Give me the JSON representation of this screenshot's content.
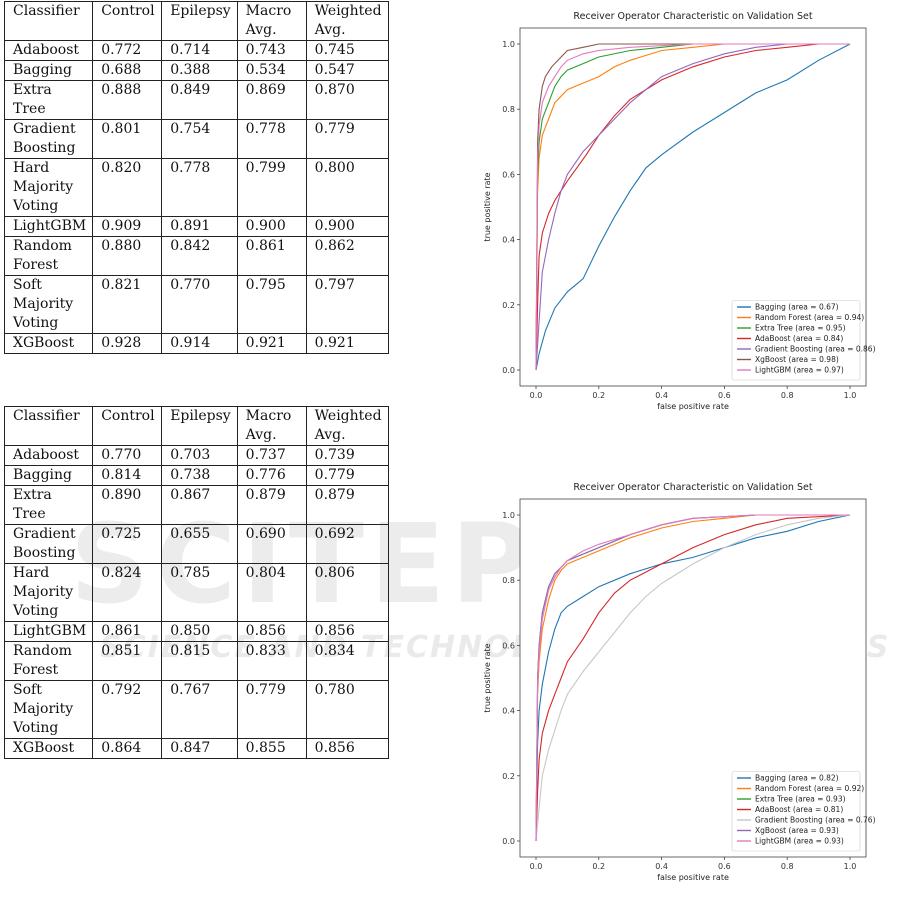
{
  "tables": [
    {
      "headers": [
        "Classifier",
        "Control",
        "Epilepsy",
        "Macro\nAvg.",
        "Weighted\nAvg."
      ],
      "rows": [
        [
          "Adaboost",
          "0.772",
          "0.714",
          "0.743",
          "0.745"
        ],
        [
          "Bagging",
          "0.688",
          "0.388",
          "0.534",
          "0.547"
        ],
        [
          "Extra\nTree",
          "0.888",
          "0.849",
          "0.869",
          "0.870"
        ],
        [
          "Gradient\nBoosting",
          "0.801",
          "0.754",
          "0.778",
          "0.779"
        ],
        [
          "Hard\nMajority\nVoting",
          "0.820",
          "0.778",
          "0.799",
          "0.800"
        ],
        [
          "LightGBM",
          "0.909",
          "0.891",
          "0.900",
          "0.900"
        ],
        [
          "Random\nForest",
          "0.880",
          "0.842",
          "0.861",
          "0.862"
        ],
        [
          "Soft\nMajority\nVoting",
          "0.821",
          "0.770",
          "0.795",
          "0.797"
        ],
        [
          "XGBoost",
          "0.928",
          "0.914",
          "0.921",
          "0.921"
        ]
      ]
    },
    {
      "headers": [
        "Classifier",
        "Control",
        "Epilepsy",
        "Macro\nAvg.",
        "Weighted\nAvg."
      ],
      "rows": [
        [
          "Adaboost",
          "0.770",
          "0.703",
          "0.737",
          "0.739"
        ],
        [
          "Bagging",
          "0.814",
          "0.738",
          "0.776",
          "0.779"
        ],
        [
          "Extra\nTree",
          "0.890",
          "0.867",
          "0.879",
          "0.879"
        ],
        [
          "Gradient\nBoosting",
          "0.725",
          "0.655",
          "0.690",
          "0.692"
        ],
        [
          "Hard\nMajority\nVoting",
          "0.824",
          "0.785",
          "0.804",
          "0.806"
        ],
        [
          "LightGBM",
          "0.861",
          "0.850",
          "0.856",
          "0.856"
        ],
        [
          "Random\nForest",
          "0.851",
          "0.815",
          "0.833",
          "0.834"
        ],
        [
          "Soft\nMajority\nVoting",
          "0.792",
          "0.767",
          "0.779",
          "0.780"
        ],
        [
          "XGBoost",
          "0.864",
          "0.847",
          "0.855",
          "0.856"
        ]
      ]
    }
  ],
  "watermark": {
    "main": "SCITEPRESS",
    "sub": "SCIENCE AND TECHNOLOGY PUBLICATIONS"
  },
  "chart_data": [
    {
      "type": "line",
      "title": "Receiver Operator Characteristic on Validation Set",
      "xlabel": "false positive rate",
      "ylabel": "true positive rate",
      "xlim": [
        0,
        1
      ],
      "ylim": [
        0,
        1
      ],
      "xticks": [
        0.0,
        0.2,
        0.4,
        0.6,
        0.8,
        1.0
      ],
      "yticks": [
        0.0,
        0.2,
        0.4,
        0.6,
        0.8,
        1.0
      ],
      "tick_labels": [
        "0.0",
        "0.2",
        "0.4",
        "0.6",
        "0.8",
        "1.0"
      ],
      "grid": false,
      "legend_position": "lower-right",
      "series": [
        {
          "name": "Bagging (area = 0.67)",
          "color": "#1f77b4",
          "x": [
            0,
            0.01,
            0.03,
            0.06,
            0.1,
            0.15,
            0.2,
            0.25,
            0.3,
            0.35,
            0.4,
            0.5,
            0.6,
            0.7,
            0.8,
            0.9,
            1.0
          ],
          "y": [
            0,
            0.05,
            0.12,
            0.19,
            0.24,
            0.28,
            0.38,
            0.47,
            0.55,
            0.62,
            0.66,
            0.73,
            0.79,
            0.85,
            0.89,
            0.95,
            1.0
          ]
        },
        {
          "name": "Random Forest (area = 0.94)",
          "color": "#ff7f0e",
          "x": [
            0,
            0.005,
            0.01,
            0.02,
            0.04,
            0.06,
            0.1,
            0.15,
            0.2,
            0.25,
            0.3,
            0.4,
            0.5,
            0.6,
            0.7,
            1.0
          ],
          "y": [
            0,
            0.55,
            0.65,
            0.72,
            0.77,
            0.82,
            0.86,
            0.88,
            0.9,
            0.93,
            0.95,
            0.98,
            0.99,
            1.0,
            1.0,
            1.0
          ]
        },
        {
          "name": "Extra Tree (area = 0.95)",
          "color": "#2ca02c",
          "x": [
            0,
            0.005,
            0.01,
            0.02,
            0.04,
            0.06,
            0.08,
            0.1,
            0.15,
            0.2,
            0.3,
            0.4,
            0.5,
            0.7,
            1.0
          ],
          "y": [
            0,
            0.6,
            0.7,
            0.77,
            0.82,
            0.87,
            0.9,
            0.92,
            0.94,
            0.96,
            0.98,
            0.99,
            1.0,
            1.0,
            1.0
          ]
        },
        {
          "name": "AdaBoost (area = 0.84)",
          "color": "#d62728",
          "x": [
            0,
            0.005,
            0.01,
            0.02,
            0.04,
            0.06,
            0.08,
            0.1,
            0.13,
            0.16,
            0.2,
            0.25,
            0.3,
            0.35,
            0.4,
            0.5,
            0.6,
            0.7,
            0.8,
            0.9,
            1.0
          ],
          "y": [
            0,
            0.2,
            0.35,
            0.42,
            0.48,
            0.52,
            0.55,
            0.58,
            0.62,
            0.66,
            0.72,
            0.78,
            0.83,
            0.86,
            0.89,
            0.93,
            0.96,
            0.98,
            0.99,
            1.0,
            1.0
          ]
        },
        {
          "name": "Gradient Boosting (area = 0.86)",
          "color": "#9467bd",
          "x": [
            0,
            0.01,
            0.02,
            0.04,
            0.06,
            0.08,
            0.1,
            0.15,
            0.2,
            0.25,
            0.3,
            0.35,
            0.4,
            0.5,
            0.6,
            0.7,
            0.8,
            1.0
          ],
          "y": [
            0,
            0.15,
            0.3,
            0.4,
            0.48,
            0.55,
            0.6,
            0.67,
            0.72,
            0.77,
            0.82,
            0.86,
            0.9,
            0.94,
            0.97,
            0.99,
            1.0,
            1.0
          ]
        },
        {
          "name": "XgBoost (area = 0.98)",
          "color": "#8c564b",
          "x": [
            0,
            0.005,
            0.01,
            0.02,
            0.03,
            0.05,
            0.08,
            0.1,
            0.15,
            0.2,
            0.3,
            0.5,
            1.0
          ],
          "y": [
            0,
            0.7,
            0.8,
            0.87,
            0.9,
            0.93,
            0.96,
            0.98,
            0.99,
            1.0,
            1.0,
            1.0,
            1.0
          ]
        },
        {
          "name": "LightGBM (area = 0.97)",
          "color": "#e377c2",
          "x": [
            0,
            0.005,
            0.01,
            0.02,
            0.04,
            0.06,
            0.08,
            0.1,
            0.15,
            0.2,
            0.3,
            0.5,
            1.0
          ],
          "y": [
            0,
            0.65,
            0.75,
            0.82,
            0.87,
            0.9,
            0.93,
            0.95,
            0.97,
            0.98,
            0.99,
            1.0,
            1.0
          ]
        }
      ]
    },
    {
      "type": "line",
      "title": "Receiver Operator Characteristic on Validation Set",
      "xlabel": "false positive rate",
      "ylabel": "true positive rate",
      "xlim": [
        0,
        1
      ],
      "ylim": [
        0,
        1
      ],
      "xticks": [
        0.0,
        0.2,
        0.4,
        0.6,
        0.8,
        1.0
      ],
      "yticks": [
        0.0,
        0.2,
        0.4,
        0.6,
        0.8,
        1.0
      ],
      "tick_labels": [
        "0.0",
        "0.2",
        "0.4",
        "0.6",
        "0.8",
        "1.0"
      ],
      "grid": false,
      "legend_position": "lower-right",
      "series": [
        {
          "name": "Bagging (area = 0.82)",
          "color": "#1f77b4",
          "x": [
            0,
            0.005,
            0.01,
            0.02,
            0.04,
            0.06,
            0.08,
            0.1,
            0.15,
            0.2,
            0.3,
            0.4,
            0.5,
            0.6,
            0.7,
            0.8,
            0.9,
            1.0
          ],
          "y": [
            0,
            0.3,
            0.4,
            0.48,
            0.58,
            0.65,
            0.7,
            0.72,
            0.75,
            0.78,
            0.82,
            0.85,
            0.87,
            0.9,
            0.93,
            0.95,
            0.98,
            1.0
          ]
        },
        {
          "name": "Random Forest (area = 0.92)",
          "color": "#ff7f0e",
          "x": [
            0,
            0.005,
            0.01,
            0.02,
            0.04,
            0.06,
            0.08,
            0.1,
            0.15,
            0.2,
            0.3,
            0.4,
            0.5,
            0.6,
            0.7,
            1.0
          ],
          "y": [
            0,
            0.45,
            0.55,
            0.65,
            0.74,
            0.8,
            0.83,
            0.85,
            0.87,
            0.89,
            0.93,
            0.96,
            0.98,
            0.99,
            1.0,
            1.0
          ]
        },
        {
          "name": "Extra Tree (area = 0.93)",
          "color": "#2ca02c",
          "x": [
            0,
            0.005,
            0.01,
            0.02,
            0.04,
            0.06,
            0.08,
            0.1,
            0.15,
            0.2,
            0.3,
            0.4,
            0.5,
            0.7,
            1.0
          ],
          "y": [
            0,
            0.5,
            0.6,
            0.7,
            0.78,
            0.82,
            0.84,
            0.86,
            0.88,
            0.9,
            0.94,
            0.97,
            0.99,
            1.0,
            1.0
          ]
        },
        {
          "name": "AdaBoost (area = 0.81)",
          "color": "#d62728",
          "x": [
            0,
            0.005,
            0.01,
            0.02,
            0.04,
            0.06,
            0.08,
            0.1,
            0.15,
            0.2,
            0.25,
            0.3,
            0.4,
            0.5,
            0.6,
            0.7,
            0.8,
            1.0
          ],
          "y": [
            0,
            0.15,
            0.25,
            0.33,
            0.4,
            0.45,
            0.5,
            0.55,
            0.62,
            0.7,
            0.76,
            0.8,
            0.85,
            0.9,
            0.94,
            0.97,
            0.99,
            1.0
          ]
        },
        {
          "name": "Gradient Boosting (area = 0.76)",
          "color": "#c7c7c7",
          "x": [
            0,
            0.01,
            0.02,
            0.04,
            0.06,
            0.08,
            0.1,
            0.15,
            0.2,
            0.25,
            0.3,
            0.35,
            0.4,
            0.5,
            0.6,
            0.7,
            0.8,
            0.9,
            1.0
          ],
          "y": [
            0,
            0.1,
            0.2,
            0.28,
            0.34,
            0.4,
            0.45,
            0.52,
            0.58,
            0.64,
            0.7,
            0.75,
            0.79,
            0.85,
            0.9,
            0.94,
            0.97,
            0.99,
            1.0
          ]
        },
        {
          "name": "XgBoost (area = 0.93)",
          "color": "#9467bd",
          "x": [
            0,
            0.005,
            0.01,
            0.02,
            0.04,
            0.06,
            0.08,
            0.1,
            0.15,
            0.2,
            0.3,
            0.4,
            0.5,
            0.7,
            1.0
          ],
          "y": [
            0,
            0.5,
            0.6,
            0.7,
            0.78,
            0.82,
            0.84,
            0.86,
            0.88,
            0.9,
            0.94,
            0.97,
            0.99,
            1.0,
            1.0
          ]
        },
        {
          "name": "LightGBM (area = 0.93)",
          "color": "#e377c2",
          "x": [
            0,
            0.005,
            0.01,
            0.02,
            0.04,
            0.06,
            0.08,
            0.1,
            0.15,
            0.2,
            0.3,
            0.4,
            0.5,
            0.7,
            1.0
          ],
          "y": [
            0,
            0.48,
            0.58,
            0.68,
            0.77,
            0.81,
            0.84,
            0.86,
            0.89,
            0.91,
            0.94,
            0.97,
            0.99,
            1.0,
            1.0
          ]
        }
      ]
    }
  ]
}
